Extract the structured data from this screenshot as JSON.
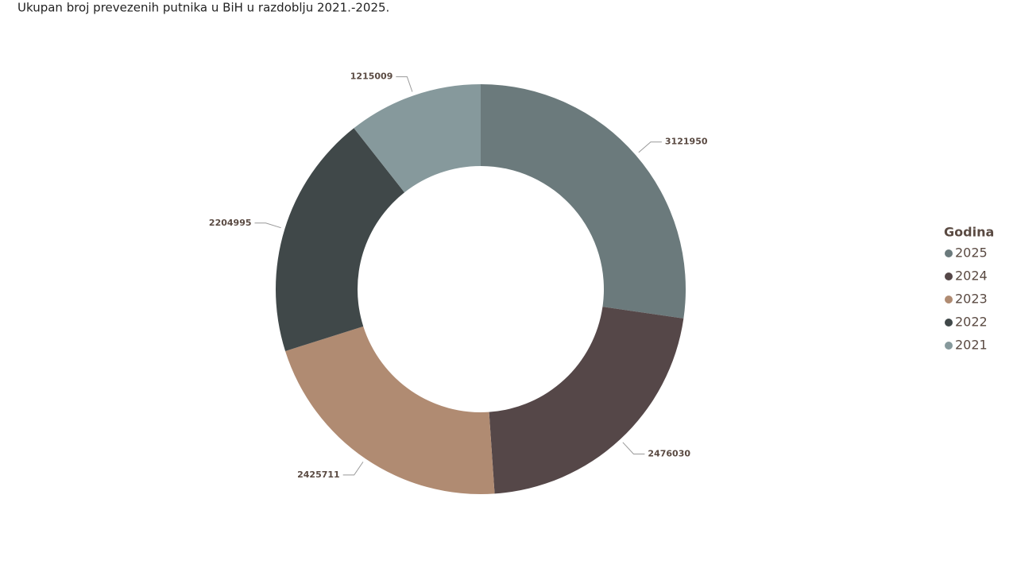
{
  "chart_data": {
    "type": "donut",
    "title": "Ukupan broj prevezenih putnika u BiH u razdoblju 2021.-2025.",
    "legend_title": "Godina",
    "categories": [
      "2025",
      "2024",
      "2023",
      "2022",
      "2021"
    ],
    "values": [
      3121950,
      2476030,
      2425711,
      2204995,
      1215009
    ],
    "colors": [
      "#6b7a7c",
      "#554748",
      "#b08b72",
      "#404849",
      "#86999c"
    ],
    "legend_position": "right"
  }
}
